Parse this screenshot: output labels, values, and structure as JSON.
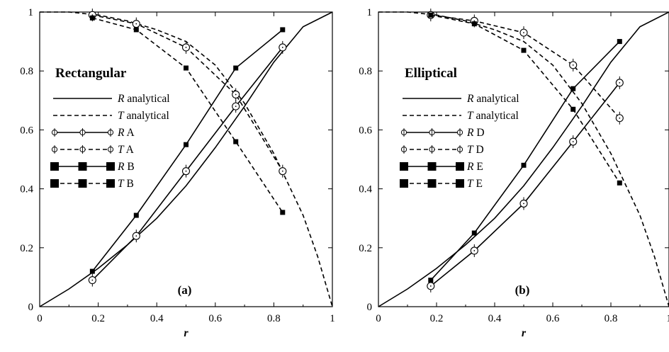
{
  "chart_data": [
    {
      "type": "line",
      "panel": "(a)",
      "title": "Rectangular",
      "xlabel": "r",
      "ylabel": "",
      "xlim": [
        0,
        1
      ],
      "ylim": [
        0,
        1
      ],
      "xticks": [
        "0",
        "0.2",
        "0.4",
        "0.6",
        "0.8",
        "1"
      ],
      "yticks": [
        "0",
        "0.2",
        "0.4",
        "0.6",
        "0.8",
        "1"
      ],
      "series": [
        {
          "name": "R analytical",
          "sym": "R",
          "txt": " analytical",
          "style": "solid",
          "marker": "none",
          "x": [
            0,
            0.1,
            0.2,
            0.3,
            0.4,
            0.5,
            0.6,
            0.7,
            0.8,
            0.9,
            1.0
          ],
          "y": [
            0,
            0.06,
            0.13,
            0.21,
            0.3,
            0.41,
            0.54,
            0.68,
            0.83,
            0.95,
            1.0
          ]
        },
        {
          "name": "T analytical",
          "sym": "T",
          "txt": " analytical",
          "style": "dashed",
          "marker": "none",
          "x": [
            0,
            0.1,
            0.2,
            0.3,
            0.4,
            0.5,
            0.6,
            0.7,
            0.8,
            0.9,
            0.95,
            1.0
          ],
          "y": [
            1.0,
            1.0,
            0.99,
            0.97,
            0.94,
            0.9,
            0.82,
            0.69,
            0.52,
            0.31,
            0.17,
            0.0
          ]
        },
        {
          "name": "R A",
          "sym": "R",
          "txt": " A",
          "style": "solid",
          "marker": "circle",
          "x": [
            0.18,
            0.33,
            0.5,
            0.67,
            0.83
          ],
          "y": [
            0.09,
            0.24,
            0.46,
            0.68,
            0.88
          ]
        },
        {
          "name": "T A",
          "sym": "T",
          "txt": " A",
          "style": "dashed",
          "marker": "circle",
          "x": [
            0.18,
            0.33,
            0.5,
            0.67,
            0.83
          ],
          "y": [
            0.99,
            0.96,
            0.88,
            0.72,
            0.46
          ]
        },
        {
          "name": "R B",
          "sym": "R",
          "txt": " B",
          "style": "solid",
          "marker": "square",
          "x": [
            0.18,
            0.33,
            0.5,
            0.67,
            0.83
          ],
          "y": [
            0.12,
            0.31,
            0.55,
            0.81,
            0.94
          ]
        },
        {
          "name": "T B",
          "sym": "T",
          "txt": " B",
          "style": "dashed",
          "marker": "square",
          "x": [
            0.18,
            0.33,
            0.5,
            0.67,
            0.83
          ],
          "y": [
            0.98,
            0.94,
            0.81,
            0.56,
            0.32
          ]
        }
      ]
    },
    {
      "type": "line",
      "panel": "(b)",
      "title": "Elliptical",
      "xlabel": "r",
      "ylabel": "",
      "xlim": [
        0,
        1
      ],
      "ylim": [
        0,
        1
      ],
      "xticks": [
        "0",
        "0.2",
        "0.4",
        "0.6",
        "0.8",
        "1"
      ],
      "yticks": [
        "0",
        "0.2",
        "0.4",
        "0.6",
        "0.8",
        "1"
      ],
      "series": [
        {
          "name": "R analytical",
          "sym": "R",
          "txt": " analytical",
          "style": "solid",
          "marker": "none",
          "x": [
            0,
            0.1,
            0.2,
            0.3,
            0.4,
            0.5,
            0.6,
            0.7,
            0.8,
            0.9,
            1.0
          ],
          "y": [
            0,
            0.06,
            0.13,
            0.21,
            0.3,
            0.41,
            0.54,
            0.68,
            0.83,
            0.95,
            1.0
          ]
        },
        {
          "name": "T analytical",
          "sym": "T",
          "txt": " analytical",
          "style": "dashed",
          "marker": "none",
          "x": [
            0,
            0.1,
            0.2,
            0.3,
            0.4,
            0.5,
            0.6,
            0.7,
            0.8,
            0.9,
            0.95,
            1.0
          ],
          "y": [
            1.0,
            1.0,
            0.99,
            0.97,
            0.94,
            0.9,
            0.82,
            0.69,
            0.52,
            0.31,
            0.17,
            0.0
          ]
        },
        {
          "name": "R D",
          "sym": "R",
          "txt": " D",
          "style": "solid",
          "marker": "circle",
          "x": [
            0.18,
            0.33,
            0.5,
            0.67,
            0.83
          ],
          "y": [
            0.07,
            0.19,
            0.35,
            0.56,
            0.76
          ]
        },
        {
          "name": "T D",
          "sym": "T",
          "txt": " D",
          "style": "dashed",
          "marker": "circle",
          "x": [
            0.18,
            0.33,
            0.5,
            0.67,
            0.83
          ],
          "y": [
            0.99,
            0.97,
            0.93,
            0.82,
            0.64
          ]
        },
        {
          "name": "R E",
          "sym": "R",
          "txt": " E",
          "style": "solid",
          "marker": "square",
          "x": [
            0.18,
            0.33,
            0.5,
            0.67,
            0.83
          ],
          "y": [
            0.09,
            0.25,
            0.48,
            0.74,
            0.9
          ]
        },
        {
          "name": "T E",
          "sym": "T",
          "txt": " E",
          "style": "dashed",
          "marker": "square",
          "x": [
            0.18,
            0.33,
            0.5,
            0.67,
            0.83
          ],
          "y": [
            0.99,
            0.96,
            0.87,
            0.67,
            0.42
          ]
        }
      ]
    }
  ]
}
